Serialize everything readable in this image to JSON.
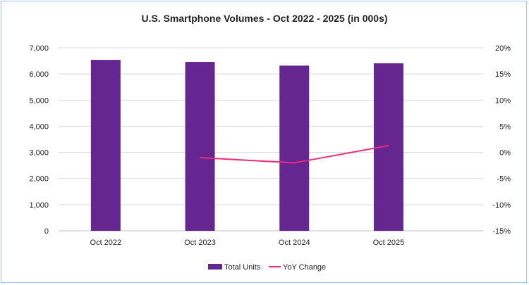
{
  "chart_data": {
    "type": "bar",
    "title": "U.S. Smartphone Volumes - Oct 2022 - 2025 (in 000s)",
    "categories": [
      "Oct 2022",
      "Oct 2023",
      "Oct 2024",
      "Oct 2025"
    ],
    "series": [
      {
        "name": "Total Units",
        "type": "bar",
        "axis": "left",
        "color": "#662690",
        "values": [
          6540,
          6460,
          6320,
          6410
        ]
      },
      {
        "name": "YoY Change",
        "type": "line",
        "axis": "right",
        "color": "#ee2a7b",
        "values": [
          null,
          -1.0,
          -2.0,
          1.3
        ]
      }
    ],
    "left_axis": {
      "ylim": [
        0,
        7000
      ],
      "ticks": [
        "0",
        "1,000",
        "2,000",
        "3,000",
        "4,000",
        "5,000",
        "6,000",
        "7,000"
      ]
    },
    "right_axis": {
      "ylim": [
        -15,
        20
      ],
      "ticks": [
        "-15%",
        "-10%",
        "-5%",
        "0%",
        "5%",
        "10%",
        "15%",
        "20%"
      ]
    },
    "grid": true,
    "legend": "bottom"
  }
}
